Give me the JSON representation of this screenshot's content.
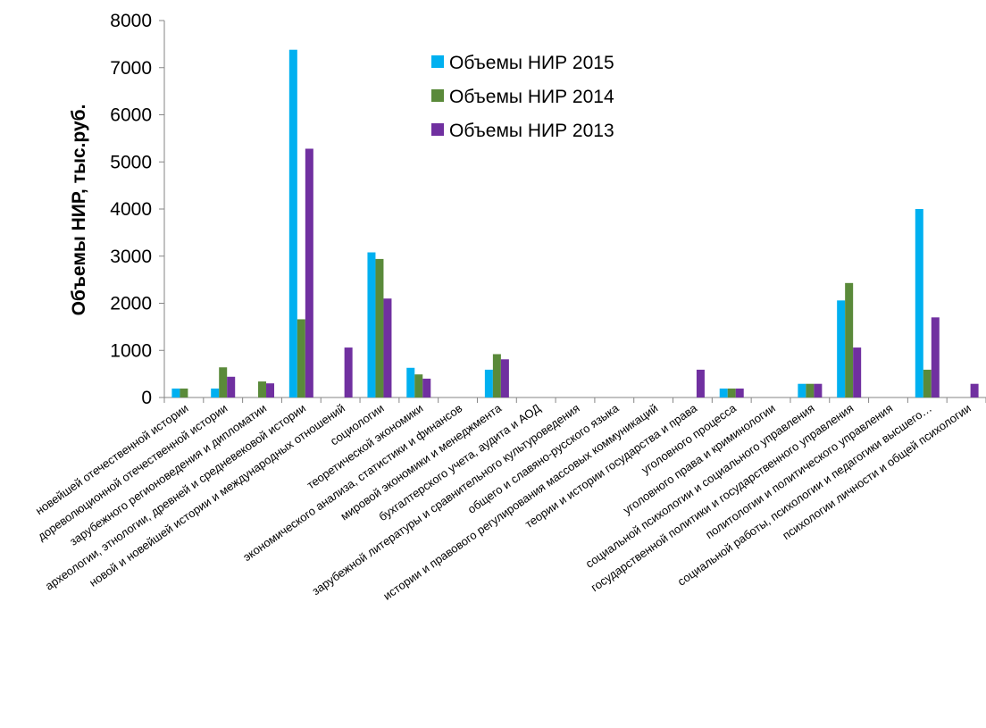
{
  "chart_data": {
    "type": "bar",
    "ylabel": "Объемы НИР, тыс.руб.",
    "ylim": [
      0,
      8000
    ],
    "yticks": [
      0,
      1000,
      2000,
      3000,
      4000,
      5000,
      6000,
      7000,
      8000
    ],
    "grid": false,
    "legend": "top-center",
    "categories": [
      "новейшей отечественной истории",
      "дореволюционной отечественной истории",
      "зарубежного регионоведения и дипломатии",
      "археологии, этнологии, древней и средневековой истории",
      "новой и новейшей истории и международных отношений",
      "социологии",
      "теоретической экономики",
      "экономического анализа, статистики и финансов",
      "мировой экономики и менеджмента",
      "бухгалтерского учета, аудита и АОД",
      "зарубежной литературы и сравнительного культуроведения",
      "общего и славяно-русского языка",
      "истории и правового регулирования массовых коммуникаций",
      "теории и истории государства и права",
      "уголовного процесса",
      "уголовного права и криминологии",
      "социальной психологии и социального управления",
      "государственной политики и государственного управления",
      "политологии и политического управления",
      "социальной работы, психологии и педагогики высшего…",
      "психологии личности и общей психологии"
    ],
    "series": [
      {
        "name": "Объемы НИР 2015",
        "color": "#00b0f0",
        "values": [
          190,
          190,
          0,
          7380,
          0,
          3080,
          630,
          0,
          590,
          0,
          0,
          0,
          0,
          0,
          190,
          0,
          290,
          2060,
          0,
          4000,
          0
        ]
      },
      {
        "name": "Объемы НИР 2014",
        "color": "#5a8a3a",
        "values": [
          190,
          640,
          340,
          1660,
          0,
          2940,
          490,
          0,
          920,
          0,
          0,
          0,
          0,
          0,
          190,
          0,
          290,
          2430,
          0,
          590,
          0
        ]
      },
      {
        "name": "Объемы НИР 2013",
        "color": "#7030a0",
        "values": [
          0,
          440,
          300,
          5280,
          1060,
          2100,
          400,
          0,
          810,
          0,
          0,
          0,
          0,
          590,
          190,
          0,
          290,
          1060,
          0,
          1700,
          290
        ]
      }
    ]
  }
}
